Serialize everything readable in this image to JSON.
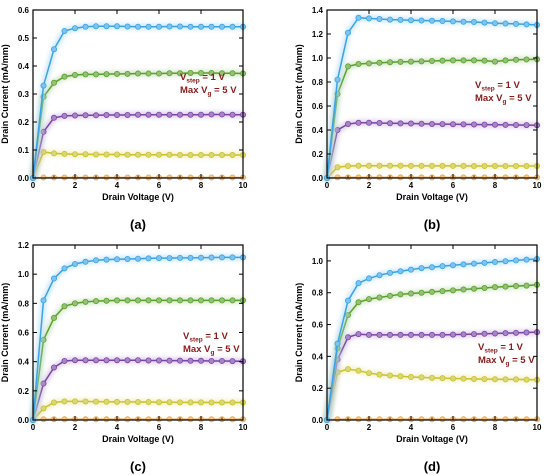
{
  "panel_ids": [
    "a",
    "b",
    "c",
    "d"
  ],
  "chart_data": [
    {
      "type": "line",
      "panel_label": "(a)",
      "xlabel": "Drain Voltage (V)",
      "ylabel": "Drain Current (mA/mm)",
      "xlim": [
        0,
        10
      ],
      "ylim": [
        0,
        0.6
      ],
      "xticks": [
        "0",
        "2",
        "4",
        "6",
        "8",
        "10"
      ],
      "yticks": [
        "0.0",
        "0.1",
        "0.2",
        "0.3",
        "0.4",
        "0.5",
        "0.6"
      ],
      "annotation": {
        "line1_prefix": "V",
        "line1_sub": "step",
        "line1_suffix": " = 1 V",
        "line2_prefix": "Max V",
        "line2_sub": "g",
        "line2_suffix": " = 5 V"
      },
      "x": [
        0,
        0.5,
        1,
        1.5,
        2,
        2.5,
        3,
        3.5,
        4,
        4.5,
        5,
        5.5,
        6,
        6.5,
        7,
        7.5,
        8,
        8.5,
        9,
        9.5,
        10
      ],
      "series": [
        {
          "color": "#f0a64a",
          "values": [
            0,
            0.002,
            0.002,
            0.002,
            0.002,
            0.002,
            0.002,
            0.002,
            0.002,
            0.002,
            0.002,
            0.002,
            0.002,
            0.002,
            0.002,
            0.002,
            0.002,
            0.002,
            0.002,
            0.002,
            0.002
          ]
        },
        {
          "color": "#c9c22a",
          "values": [
            0,
            0.093,
            0.088,
            0.086,
            0.085,
            0.085,
            0.084,
            0.084,
            0.084,
            0.083,
            0.083,
            0.083,
            0.083,
            0.083,
            0.082,
            0.082,
            0.082,
            0.082,
            0.082,
            0.082,
            0.082
          ]
        },
        {
          "color": "#7a44a8",
          "values": [
            0,
            0.165,
            0.215,
            0.222,
            0.223,
            0.224,
            0.224,
            0.225,
            0.225,
            0.225,
            0.226,
            0.226,
            0.226,
            0.226,
            0.226,
            0.226,
            0.226,
            0.227,
            0.227,
            0.226,
            0.226
          ]
        },
        {
          "color": "#5aa02c",
          "values": [
            0,
            0.29,
            0.34,
            0.362,
            0.368,
            0.37,
            0.37,
            0.371,
            0.372,
            0.372,
            0.373,
            0.373,
            0.373,
            0.374,
            0.374,
            0.375,
            0.375,
            0.375,
            0.374,
            0.374,
            0.373
          ]
        },
        {
          "color": "#3aa3e6",
          "values": [
            0,
            0.33,
            0.46,
            0.525,
            0.535,
            0.54,
            0.542,
            0.542,
            0.542,
            0.541,
            0.54,
            0.54,
            0.54,
            0.541,
            0.541,
            0.54,
            0.54,
            0.54,
            0.54,
            0.54,
            0.54
          ]
        }
      ]
    },
    {
      "type": "line",
      "panel_label": "(b)",
      "xlabel": "Drain Voltage (V)",
      "ylabel": "Drain Current (mA/mm)",
      "xlim": [
        0,
        10
      ],
      "ylim": [
        0,
        1.4
      ],
      "xticks": [
        "0",
        "2",
        "4",
        "6",
        "8",
        "10"
      ],
      "yticks": [
        "0.0",
        "0.2",
        "0.4",
        "0.6",
        "0.8",
        "1.0",
        "1.2",
        "1.4"
      ],
      "annotation": {
        "line1_prefix": "V",
        "line1_sub": "step",
        "line1_suffix": " = 1 V",
        "line2_prefix": "Max V",
        "line2_sub": "g",
        "line2_suffix": " = 5 V"
      },
      "x": [
        0,
        0.5,
        1,
        1.5,
        2,
        2.5,
        3,
        3.5,
        4,
        4.5,
        5,
        5.5,
        6,
        6.5,
        7,
        7.5,
        8,
        8.5,
        9,
        9.5,
        10
      ],
      "series": [
        {
          "color": "#f0a64a",
          "values": [
            0,
            0.005,
            0.005,
            0.005,
            0.005,
            0.005,
            0.005,
            0.005,
            0.005,
            0.005,
            0.005,
            0.005,
            0.005,
            0.005,
            0.005,
            0.005,
            0.005,
            0.005,
            0.005,
            0.005,
            0.005
          ]
        },
        {
          "color": "#c9c22a",
          "values": [
            0,
            0.09,
            0.1,
            0.102,
            0.102,
            0.102,
            0.102,
            0.102,
            0.101,
            0.101,
            0.101,
            0.101,
            0.101,
            0.101,
            0.1,
            0.1,
            0.1,
            0.1,
            0.1,
            0.1,
            0.1
          ]
        },
        {
          "color": "#7a44a8",
          "values": [
            0,
            0.4,
            0.45,
            0.46,
            0.46,
            0.458,
            0.456,
            0.455,
            0.454,
            0.452,
            0.45,
            0.449,
            0.448,
            0.447,
            0.446,
            0.445,
            0.444,
            0.443,
            0.442,
            0.441,
            0.44
          ]
        },
        {
          "color": "#5aa02c",
          "values": [
            0,
            0.7,
            0.93,
            0.95,
            0.955,
            0.96,
            0.965,
            0.968,
            0.97,
            0.972,
            0.975,
            0.978,
            0.98,
            0.98,
            0.98,
            0.978,
            0.97,
            0.98,
            0.985,
            0.988,
            0.99
          ]
        },
        {
          "color": "#3aa3e6",
          "values": [
            0,
            0.82,
            1.21,
            1.335,
            1.33,
            1.325,
            1.32,
            1.318,
            1.315,
            1.312,
            1.31,
            1.308,
            1.305,
            1.302,
            1.3,
            1.295,
            1.29,
            1.287,
            1.284,
            1.28,
            1.275
          ]
        }
      ]
    },
    {
      "type": "line",
      "panel_label": "(c)",
      "xlabel": "Drain Voltage (V)",
      "ylabel": "Drain Current (mA/mm)",
      "xlim": [
        0,
        10
      ],
      "ylim": [
        0,
        1.2
      ],
      "xticks": [
        "0",
        "2",
        "4",
        "6",
        "8",
        "10"
      ],
      "yticks": [
        "0.0",
        "0.2",
        "0.4",
        "0.6",
        "0.8",
        "1.0",
        "1.2"
      ],
      "annotation": {
        "line1_prefix": "V",
        "line1_sub": "step",
        "line1_suffix": " = 1 V",
        "line2_prefix": "Max V",
        "line2_sub": "g",
        "line2_suffix": " = 5 V"
      },
      "x": [
        0,
        0.5,
        1,
        1.5,
        2,
        2.5,
        3,
        3.5,
        4,
        4.5,
        5,
        5.5,
        6,
        6.5,
        7,
        7.5,
        8,
        8.5,
        9,
        9.5,
        10
      ],
      "series": [
        {
          "color": "#f0a64a",
          "values": [
            0,
            0.005,
            0.005,
            0.005,
            0.005,
            0.005,
            0.005,
            0.005,
            0.005,
            0.005,
            0.005,
            0.005,
            0.005,
            0.005,
            0.005,
            0.005,
            0.005,
            0.005,
            0.005,
            0.005,
            0.005
          ]
        },
        {
          "color": "#c9c22a",
          "values": [
            0,
            0.08,
            0.12,
            0.128,
            0.128,
            0.127,
            0.126,
            0.125,
            0.124,
            0.124,
            0.123,
            0.123,
            0.122,
            0.122,
            0.121,
            0.121,
            0.121,
            0.12,
            0.12,
            0.12,
            0.12
          ]
        },
        {
          "color": "#7a44a8",
          "values": [
            0,
            0.25,
            0.36,
            0.405,
            0.41,
            0.41,
            0.41,
            0.41,
            0.41,
            0.41,
            0.41,
            0.408,
            0.408,
            0.407,
            0.407,
            0.406,
            0.406,
            0.405,
            0.405,
            0.404,
            0.403
          ]
        },
        {
          "color": "#5aa02c",
          "values": [
            0,
            0.55,
            0.7,
            0.78,
            0.8,
            0.81,
            0.815,
            0.818,
            0.82,
            0.82,
            0.82,
            0.82,
            0.82,
            0.82,
            0.82,
            0.82,
            0.82,
            0.82,
            0.82,
            0.82,
            0.82
          ]
        },
        {
          "color": "#3aa3e6",
          "values": [
            0,
            0.82,
            0.97,
            1.04,
            1.07,
            1.085,
            1.095,
            1.1,
            1.102,
            1.104,
            1.106,
            1.108,
            1.11,
            1.11,
            1.112,
            1.112,
            1.113,
            1.114,
            1.115,
            1.115,
            1.115
          ]
        }
      ]
    },
    {
      "type": "line",
      "panel_label": "(d)",
      "xlabel": "Drain Voltage (V)",
      "ylabel": "Drain Current (mA/mm)",
      "xlim": [
        0,
        10
      ],
      "ylim": [
        0,
        1.1
      ],
      "xticks": [
        "0",
        "2",
        "4",
        "6",
        "8",
        "10"
      ],
      "yticks": [
        "0.0",
        "0.2",
        "0.4",
        "0.6",
        "0.8",
        "1.0"
      ],
      "annotation": {
        "line1_prefix": "V",
        "line1_sub": "step",
        "line1_suffix": " = 1 V",
        "line2_prefix": "Max V",
        "line2_sub": "g",
        "line2_suffix": " = 5 V"
      },
      "x": [
        0,
        0.5,
        1,
        1.5,
        2,
        2.5,
        3,
        3.5,
        4,
        4.5,
        5,
        5.5,
        6,
        6.5,
        7,
        7.5,
        8,
        8.5,
        9,
        9.5,
        10
      ],
      "series": [
        {
          "color": "#f0a64a",
          "values": [
            0,
            0.005,
            0.005,
            0.005,
            0.005,
            0.005,
            0.005,
            0.005,
            0.005,
            0.005,
            0.005,
            0.005,
            0.005,
            0.005,
            0.005,
            0.005,
            0.005,
            0.005,
            0.005,
            0.005,
            0.005
          ]
        },
        {
          "color": "#c9c22a",
          "values": [
            0,
            0.3,
            0.32,
            0.31,
            0.295,
            0.285,
            0.28,
            0.275,
            0.27,
            0.268,
            0.265,
            0.263,
            0.261,
            0.26,
            0.258,
            0.257,
            0.256,
            0.255,
            0.255,
            0.254,
            0.253
          ]
        },
        {
          "color": "#7a44a8",
          "values": [
            0,
            0.38,
            0.52,
            0.54,
            0.535,
            0.535,
            0.535,
            0.535,
            0.535,
            0.535,
            0.535,
            0.535,
            0.537,
            0.538,
            0.54,
            0.542,
            0.544,
            0.546,
            0.548,
            0.55,
            0.552
          ]
        },
        {
          "color": "#5aa02c",
          "values": [
            0,
            0.45,
            0.66,
            0.74,
            0.76,
            0.77,
            0.78,
            0.79,
            0.795,
            0.8,
            0.805,
            0.81,
            0.815,
            0.82,
            0.825,
            0.83,
            0.835,
            0.838,
            0.842,
            0.845,
            0.85
          ]
        },
        {
          "color": "#3aa3e6",
          "values": [
            0,
            0.48,
            0.75,
            0.86,
            0.89,
            0.91,
            0.925,
            0.935,
            0.945,
            0.955,
            0.96,
            0.967,
            0.973,
            0.978,
            0.983,
            0.988,
            0.993,
            0.998,
            1.003,
            1.008,
            1.012
          ]
        }
      ]
    }
  ]
}
